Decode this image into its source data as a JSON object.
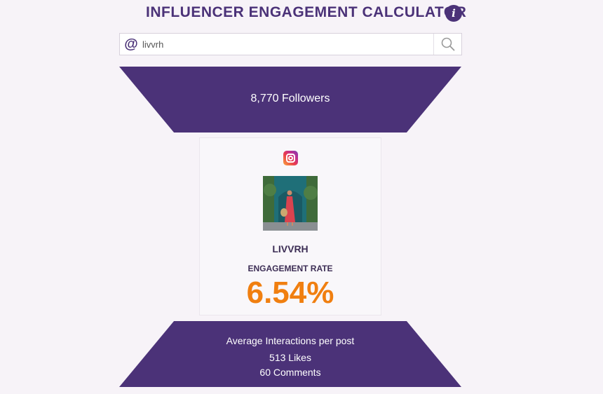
{
  "header": {
    "title": "INFLUENCER ENGAGEMENT CALCULATOR",
    "info_icon": "info-icon",
    "accent_color": "#4b3278"
  },
  "search": {
    "prefix_icon": "at-sign-icon",
    "value": "livvrh",
    "placeholder": "",
    "button_icon": "search-icon"
  },
  "stats": {
    "followers": "8,770 Followers"
  },
  "profile": {
    "platform_icon": "instagram-icon",
    "avatar": "profile-photo",
    "username": "LIVVRH",
    "engagement_label": "ENGAGEMENT RATE",
    "engagement_rate": "6.54%",
    "engagement_color": "#f07f10"
  },
  "interactions": {
    "heading": "Average Interactions per post",
    "likes": "513 Likes",
    "comments": "60 Comments"
  }
}
